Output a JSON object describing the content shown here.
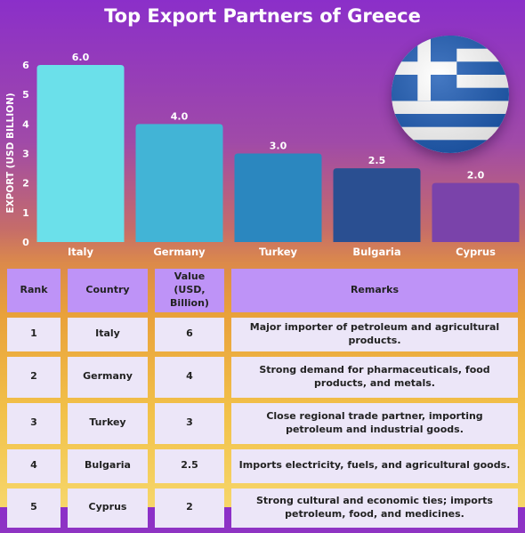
{
  "title": "Top Export Partners of Greece",
  "colors": {
    "header_bg": "#be93f7",
    "cell_bg": "#ece6f8",
    "flag_blue": "#1c5bb5"
  },
  "flag_icon": "greece-flag-icon",
  "chart_data": {
    "type": "bar",
    "categories": [
      "Italy",
      "Germany",
      "Turkey",
      "Bulgaria",
      "Cyprus"
    ],
    "values": [
      6.0,
      4.0,
      3.0,
      2.5,
      2.0
    ],
    "data_labels": [
      "6.0",
      "4.0",
      "3.0",
      "2.5",
      "2.0"
    ],
    "colors": [
      "#6be0ea",
      "#42b4d6",
      "#2b87bf",
      "#2a4f91",
      "#7a43aa"
    ],
    "title": "Top Export Partners of Greece",
    "xlabel": "",
    "ylabel": "EXPORT (USD BILLION)",
    "ylim": [
      0,
      6
    ],
    "yticks": [
      "0",
      "1",
      "2",
      "3",
      "4",
      "5",
      "6"
    ],
    "grid": false,
    "legend": "none"
  },
  "table": {
    "headers": [
      "Rank",
      "Country",
      "Value (USD, Billion)",
      "Remarks"
    ],
    "rows": [
      [
        "1",
        "Italy",
        "6",
        "Major importer of petroleum and agricultural products."
      ],
      [
        "2",
        "Germany",
        "4",
        "Strong demand for pharmaceuticals, food products, and metals."
      ],
      [
        "3",
        "Turkey",
        "3",
        "Close regional trade partner, importing petroleum and industrial goods."
      ],
      [
        "4",
        "Bulgaria",
        "2.5",
        "Imports electricity, fuels, and agricultural goods."
      ],
      [
        "5",
        "Cyprus",
        "2",
        "Strong cultural and economic ties; imports petroleum, food, and medicines."
      ]
    ]
  }
}
